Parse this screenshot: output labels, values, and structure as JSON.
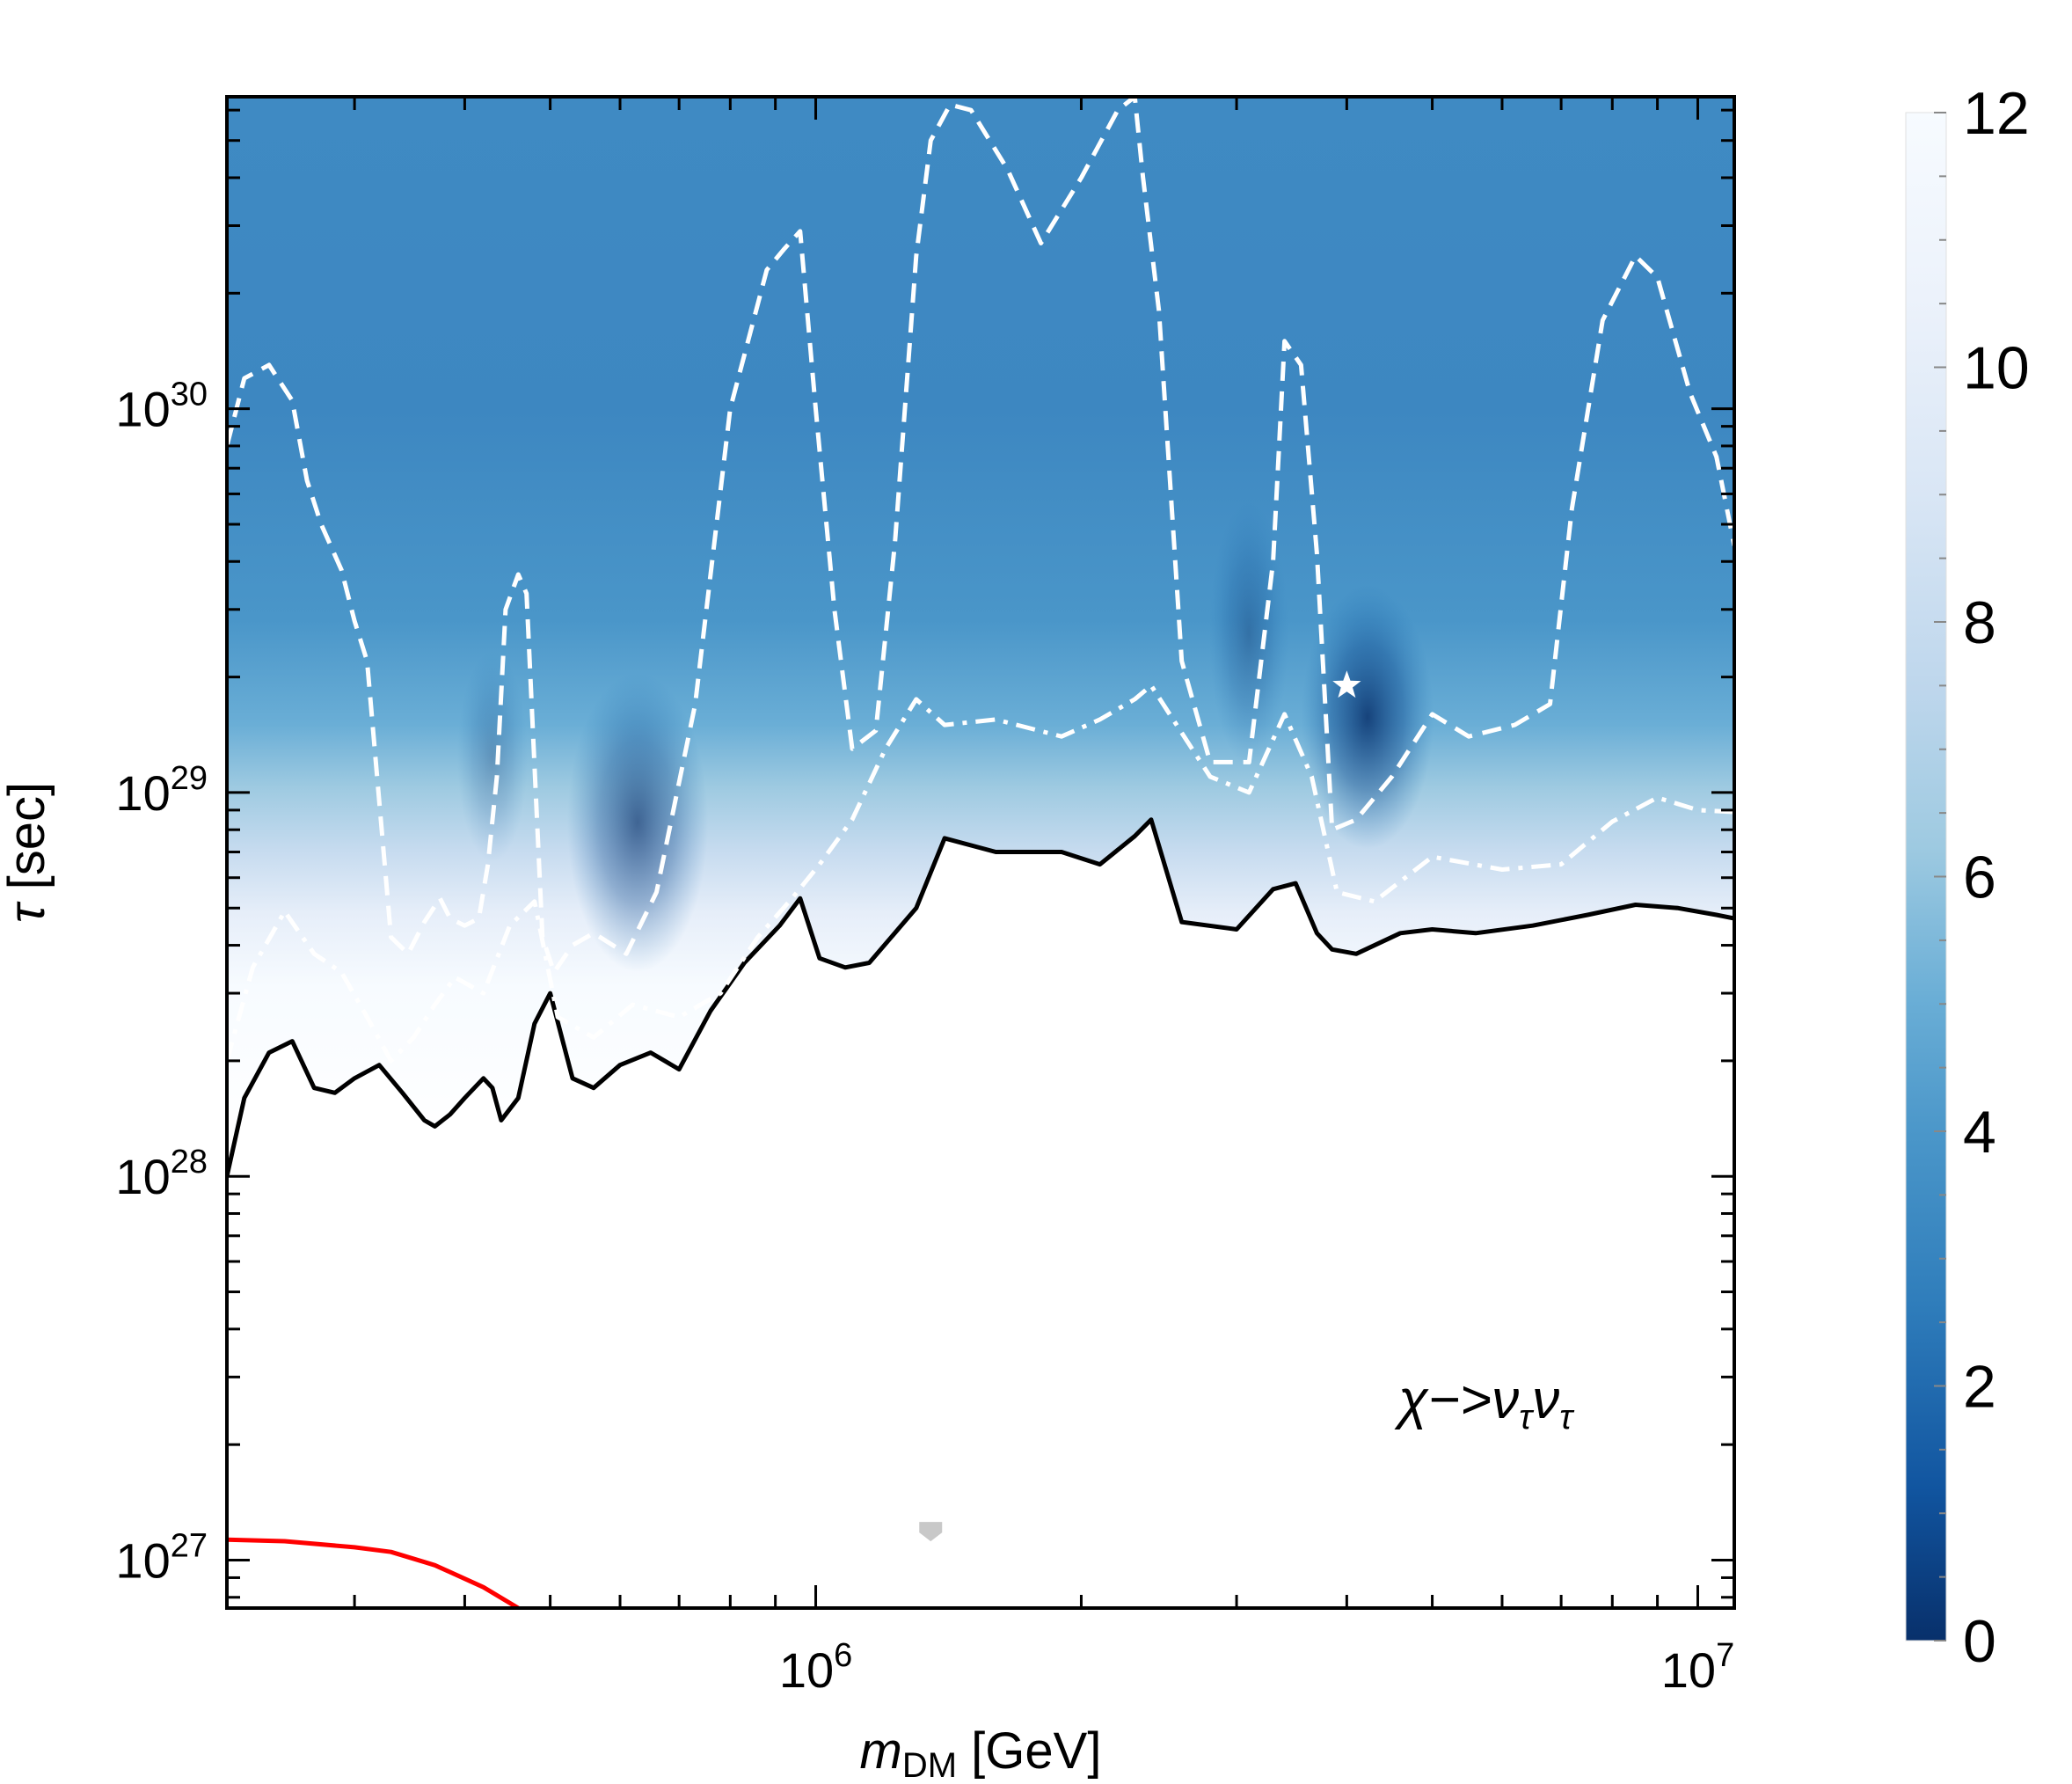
{
  "chart_data": {
    "type": "heatmap",
    "title": "",
    "annotation": "χ−>ν",
    "annotation_sub": "τ",
    "xlabel_main": "m",
    "xlabel_sub": "DM",
    "xlabel_unit": " [GeV]",
    "ylabel_main": "τ",
    "ylabel_unit": " [sec]",
    "x_scale": "log",
    "y_scale": "log",
    "xlim": [
      215000,
      11000000
    ],
    "ylim": [
      7.5e+26,
      6.5e+30
    ],
    "x_ticks": [
      {
        "base": "10",
        "exp": "6"
      },
      {
        "base": "10",
        "exp": "7"
      }
    ],
    "y_ticks": [
      {
        "base": "10",
        "exp": "27"
      },
      {
        "base": "10",
        "exp": "28"
      },
      {
        "base": "10",
        "exp": "29"
      },
      {
        "base": "10",
        "exp": "30"
      }
    ],
    "colorbar": {
      "min": 0,
      "max": 12,
      "ticks": [
        "0",
        "2",
        "4",
        "6",
        "8",
        "10",
        "12"
      ],
      "colormap": "Blues reversed"
    },
    "best_fit_point": {
      "x": 4000000,
      "y": 1.9e+29,
      "marker": "star"
    },
    "colors": {
      "dark": "#08306b",
      "mid": "#4292c6",
      "light": "#c6dbef",
      "contour": "#ffffff",
      "limit": "#000000",
      "other_limit": "#ff0000",
      "grey_mark": "#c8c8c8"
    },
    "series": [
      {
        "name": "solid-limit",
        "style": "solid",
        "color": "#000000",
        "x": [
          215000,
          225000,
          240000,
          255000,
          270000,
          285000,
          300000,
          320000,
          340000,
          360000,
          370000,
          385000,
          400000,
          420000,
          430000,
          440000,
          460000,
          480000,
          500000,
          530000,
          560000,
          600000,
          650000,
          700000,
          760000,
          830000,
          910000,
          960000,
          1010000,
          1080000,
          1150000,
          1300000,
          1400000,
          1600000,
          1900000,
          2100000,
          2300000,
          2400000,
          2600000,
          3000000,
          3300000,
          3500000,
          3700000,
          3850000,
          4100000,
          4600000,
          5000000,
          5600000,
          6500000,
          7500000,
          8500000,
          9500000,
          10500000,
          11000000
        ],
        "y": [
          1e+28,
          1.6e+28,
          2.1e+28,
          2.25e+28,
          1.7e+28,
          1.65e+28,
          1.8e+28,
          1.95e+28,
          1.65e+28,
          1.4e+28,
          1.35e+28,
          1.45e+28,
          1.6e+28,
          1.8e+28,
          1.7e+28,
          1.4e+28,
          1.6e+28,
          2.5e+28,
          3e+28,
          1.8e+28,
          1.7e+28,
          1.95e+28,
          2.1e+28,
          1.9e+28,
          2.7e+28,
          3.6e+28,
          4.5e+28,
          5.3e+28,
          3.7e+28,
          3.5e+28,
          3.6e+28,
          5e+28,
          7.6e+28,
          7e+28,
          7e+28,
          6.5e+28,
          7.7e+28,
          8.5e+28,
          4.6e+28,
          4.4e+28,
          5.6e+28,
          5.8e+28,
          4.3e+28,
          3.9e+28,
          3.8e+28,
          4.3e+28,
          4.4e+28,
          4.3e+28,
          4.5e+28,
          4.8e+28,
          5.1e+28,
          5e+28,
          4.8e+28,
          4.7e+28
        ]
      },
      {
        "name": "dash-dot-contour",
        "style": "dash-dot",
        "color": "#ffffff",
        "x": [
          215000,
          230000,
          250000,
          270000,
          290000,
          310000,
          330000,
          350000,
          370000,
          390000,
          420000,
          450000,
          480000,
          510000,
          560000,
          620000,
          700000,
          780000,
          860000,
          940000,
          1010000,
          1100000,
          1200000,
          1300000,
          1400000,
          1600000,
          1900000,
          2100000,
          2300000,
          2400000,
          2800000,
          3100000,
          3400000,
          3650000,
          3900000,
          4300000,
          5000000,
          6000000,
          7000000,
          8000000,
          9000000,
          10000000,
          11000000
        ],
        "y": [
          2e+28,
          3.5e+28,
          4.9e+28,
          3.8e+28,
          3.4e+28,
          2.6e+28,
          2e+28,
          2.3e+28,
          2.8e+28,
          3.3e+28,
          3e+28,
          4.5e+28,
          5.2e+28,
          2.6e+28,
          2.3e+28,
          2.8e+28,
          2.6e+28,
          3e+28,
          4.2e+28,
          5.3e+28,
          6.5e+28,
          8.5e+28,
          1.3e+29,
          1.75e+29,
          1.5e+29,
          1.55e+29,
          1.4e+29,
          1.55e+29,
          1.75e+29,
          1.9e+29,
          1.1e+29,
          1e+29,
          1.6e+29,
          1.1e+29,
          5.5e+28,
          5.2e+28,
          6.8e+28,
          6.3e+28,
          6.5e+28,
          8.4e+28,
          9.7e+28,
          9e+28,
          8.9e+28
        ]
      },
      {
        "name": "dashed-contour",
        "style": "dashed",
        "color": "#ffffff",
        "x": [
          215000,
          225000,
          240000,
          255000,
          265000,
          275000,
          290000,
          300000,
          310000,
          330000,
          345000,
          360000,
          375000,
          385000,
          400000,
          415000,
          425000,
          435000,
          445000,
          460000,
          470000,
          490000,
          505000,
          530000,
          560000,
          610000,
          660000,
          730000,
          800000,
          880000,
          920000,
          960000,
          1000000,
          1050000,
          1100000,
          1170000,
          1230000,
          1300000,
          1350000,
          1420000,
          1500000,
          1650000,
          1800000,
          2000000,
          2200000,
          2300000,
          2350000,
          2450000,
          2600000,
          2800000,
          3100000,
          3300000,
          3400000,
          3550000,
          3700000,
          3850000,
          4100000,
          4500000,
          5000000,
          5500000,
          6200000,
          6800000,
          7200000,
          7800000,
          8500000,
          9000000,
          9800000,
          10500000,
          11000000
        ],
        "y": [
          8e+29,
          1.2e+30,
          1.3e+30,
          1.05e+30,
          6.5e+29,
          5e+29,
          3.8e+29,
          2.8e+29,
          2.2e+29,
          4.2e+28,
          3.8e+28,
          4.6e+28,
          5.3e+28,
          4.7e+28,
          4.5e+28,
          4.7e+28,
          6.5e+28,
          1.1e+29,
          3e+29,
          3.7e+29,
          3.3e+29,
          4.2e+28,
          3.4e+28,
          4e+28,
          4.3e+28,
          3.8e+28,
          5.5e+28,
          1.7e+29,
          1e+30,
          2.3e+30,
          2.6e+30,
          2.9e+30,
          1e+30,
          3e+29,
          1.3e+29,
          1.45e+29,
          4.5e+29,
          2.5e+30,
          5e+30,
          6.2e+30,
          6e+30,
          4.2e+30,
          2.7e+30,
          4e+30,
          6e+30,
          6.5e+30,
          4e+30,
          1.8e+30,
          2.2e+29,
          1.2e+29,
          1.2e+29,
          4e+29,
          1.5e+30,
          1.3e+30,
          4.2e+29,
          8e+28,
          8.5e+28,
          1.1e+29,
          1.6e+29,
          1.4e+29,
          1.5e+29,
          1.7e+29,
          5.5e+29,
          1.7e+30,
          2.5e+30,
          2.2e+30,
          1.1e+30,
          7.5e+29,
          4.4e+29
        ]
      },
      {
        "name": "red-limit",
        "style": "solid",
        "color": "#ff0000",
        "x": [
          215000,
          250000,
          300000,
          330000,
          370000,
          420000,
          460000
        ],
        "y": [
          1.13e+27,
          1.12e+27,
          1.08e+27,
          1.05e+27,
          9.7e+26,
          8.5e+26,
          7.5e+26
        ]
      }
    ]
  }
}
